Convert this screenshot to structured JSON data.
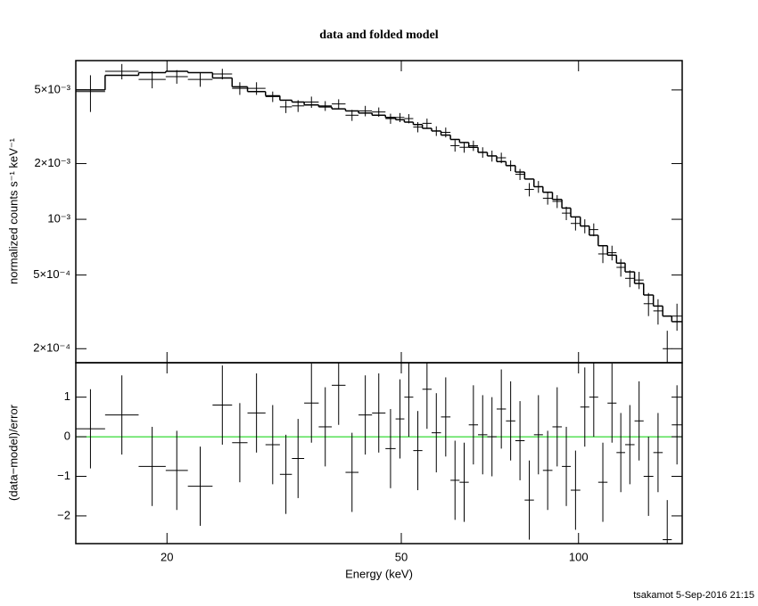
{
  "chart_data": [
    {
      "type": "folded-spectrum",
      "title": "data and folded model",
      "ylabel": "normalized counts s⁻¹ keV⁻¹",
      "log_x": true,
      "log_y": true,
      "xlim": [
        14,
        150
      ],
      "ylim": [
        0.000168,
        0.0072
      ],
      "xticks": [
        20,
        50,
        100
      ],
      "yticks": [
        {
          "value": 0.0002,
          "label": "2×10⁻⁴"
        },
        {
          "value": 0.0005,
          "label": "5×10⁻⁴"
        },
        {
          "value": 0.001,
          "label": "10⁻³"
        },
        {
          "value": 0.002,
          "label": "2×10⁻³"
        },
        {
          "value": 0.005,
          "label": "5×10⁻³"
        }
      ],
      "bins": [
        14,
        15.7,
        17.9,
        19.9,
        21.7,
        23.9,
        25.8,
        27.4,
        29.4,
        31.1,
        32.6,
        34.2,
        36.2,
        38.1,
        40.2,
        42.3,
        44.6,
        47,
        48.9,
        50.6,
        52.4,
        54.3,
        56.3,
        58.4,
        60.6,
        62.8,
        65.1,
        67.5,
        70,
        72.6,
        75.3,
        78.1,
        81,
        84,
        87,
        90.3,
        93.7,
        97,
        100.7,
        104.3,
        108,
        112,
        116,
        120,
        124.5,
        129,
        134,
        139,
        144,
        150
      ],
      "data": {
        "color": "#000000",
        "values": [
          0.0049,
          0.0063,
          0.0057,
          0.0059,
          0.0057,
          0.0061,
          0.0051,
          0.0051,
          0.0046,
          0.00405,
          0.0041,
          0.0043,
          0.0041,
          0.0042,
          0.00365,
          0.00385,
          0.0038,
          0.0035,
          0.00355,
          0.0035,
          0.00315,
          0.0033,
          0.003,
          0.00295,
          0.0025,
          0.00245,
          0.0025,
          0.0023,
          0.0022,
          0.00215,
          0.00195,
          0.00175,
          0.00145,
          0.0015,
          0.0013,
          0.00125,
          0.00108,
          0.00095,
          0.00092,
          0.00088,
          0.00065,
          0.00066,
          0.00055,
          0.00048,
          0.00047,
          0.00035,
          0.00032,
          0.0002,
          0.0003
        ],
        "errors": [
          0.0011,
          0.0006,
          0.0006,
          0.0005,
          0.0005,
          0.0004,
          0.0004,
          0.0004,
          0.0003,
          0.0003,
          0.0003,
          0.0003,
          0.00025,
          0.00025,
          0.00025,
          0.00025,
          0.00022,
          0.00022,
          0.0002,
          0.0002,
          0.0002,
          0.0002,
          0.00018,
          0.00018,
          0.00018,
          0.00016,
          0.00016,
          0.00015,
          0.00015,
          0.00014,
          0.00013,
          0.00012,
          0.00012,
          0.00011,
          0.0001,
          0.0001,
          9e-05,
          8e-05,
          8e-05,
          7e-05,
          7e-05,
          6e-05,
          6e-05,
          5e-05,
          5e-05,
          5e-05,
          5e-05,
          5e-05,
          5e-05
        ]
      },
      "model": {
        "color": "#000000",
        "values": [
          0.005,
          0.006,
          0.0062,
          0.0063,
          0.0062,
          0.0058,
          0.0052,
          0.0049,
          0.00465,
          0.0044,
          0.0043,
          0.00415,
          0.00405,
          0.00395,
          0.00385,
          0.00375,
          0.00365,
          0.00355,
          0.00345,
          0.00335,
          0.00325,
          0.0031,
          0.003,
          0.00285,
          0.0027,
          0.0026,
          0.00245,
          0.0023,
          0.0022,
          0.00205,
          0.00195,
          0.0018,
          0.00165,
          0.0015,
          0.0014,
          0.00128,
          0.00115,
          0.00103,
          0.00092,
          0.00082,
          0.00072,
          0.00064,
          0.00058,
          0.00052,
          0.00045,
          0.00039,
          0.00034,
          0.0003,
          0.00028
        ]
      }
    },
    {
      "type": "residuals",
      "ylabel": "(data−model)/error",
      "xlabel": "Energy (keV)",
      "log_x": true,
      "xlim": [
        14,
        150
      ],
      "ylim": [
        -2.7,
        1.87
      ],
      "xticks": [
        20,
        50,
        100
      ],
      "yticks": [
        {
          "value": -2,
          "label": "−2"
        },
        {
          "value": -1,
          "label": "−1"
        },
        0,
        1
      ],
      "reference_line": 0,
      "reference_color": "#00d000",
      "bins": [
        14,
        15.7,
        17.9,
        19.9,
        21.7,
        23.9,
        25.8,
        27.4,
        29.4,
        31.1,
        32.6,
        34.2,
        36.2,
        38.1,
        40.2,
        42.3,
        44.6,
        47,
        48.9,
        50.6,
        52.4,
        54.3,
        56.3,
        58.4,
        60.6,
        62.8,
        65.1,
        67.5,
        70,
        72.6,
        75.3,
        78.1,
        81,
        84,
        87,
        90.3,
        93.7,
        97,
        100.7,
        104.3,
        108,
        112,
        116,
        120,
        124.5,
        129,
        134,
        139,
        144,
        150
      ],
      "data": {
        "color": "#000000",
        "values": [
          0.2,
          0.55,
          -0.75,
          -0.85,
          -1.25,
          0.8,
          -0.15,
          0.6,
          -0.2,
          -0.95,
          -0.55,
          0.85,
          0.25,
          1.3,
          -0.9,
          0.55,
          0.6,
          -0.3,
          0.45,
          1.0,
          -0.35,
          1.2,
          0.1,
          0.5,
          -1.1,
          -1.15,
          0.3,
          0.05,
          0.0,
          0.7,
          0.4,
          -0.1,
          -1.6,
          0.05,
          -0.85,
          0.25,
          -0.75,
          -1.35,
          0.75,
          1.0,
          -1.15,
          0.85,
          -0.4,
          -0.2,
          0.4,
          -1.0,
          -0.4,
          -2.6,
          0.3
        ],
        "errors": [
          1,
          1,
          1,
          1,
          1,
          1,
          1,
          1,
          1,
          1,
          1,
          1,
          1,
          1,
          1,
          1,
          1,
          1,
          1,
          1,
          1,
          1,
          1,
          1,
          1,
          1,
          1,
          1,
          1,
          1,
          1,
          1,
          1,
          1,
          1,
          1,
          1,
          1,
          1,
          1,
          1,
          1,
          1,
          1,
          1,
          1,
          1,
          1,
          1
        ]
      }
    }
  ],
  "footer": "tsakamot  5-Sep-2016 21:15"
}
